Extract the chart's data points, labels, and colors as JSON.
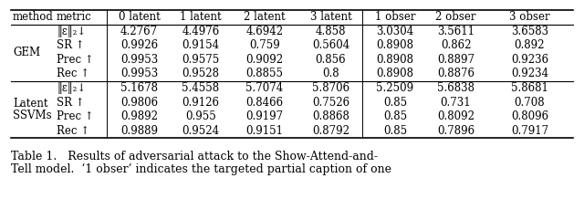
{
  "col_headers": [
    "method",
    "metric",
    "0 latent",
    "1 latent",
    "2 latent",
    "3 latent",
    "1 obser",
    "2 obser",
    "3 obser"
  ],
  "data_rows": [
    [
      "‖ε‖₂↓",
      "4.2767",
      "4.4976",
      "4.6942",
      "4.858",
      "3.0304",
      "3.5611",
      "3.6583"
    ],
    [
      "SR ↑",
      "0.9926",
      "0.9154",
      "0.759",
      "0.5604",
      "0.8908",
      "0.862",
      "0.892"
    ],
    [
      "Prec ↑",
      "0.9953",
      "0.9575",
      "0.9092",
      "0.856",
      "0.8908",
      "0.8897",
      "0.9236"
    ],
    [
      "Rec ↑",
      "0.9953",
      "0.9528",
      "0.8855",
      "0.8",
      "0.8908",
      "0.8876",
      "0.9234"
    ],
    [
      "‖ε‖₂↓",
      "5.1678",
      "5.4558",
      "5.7074",
      "5.8706",
      "5.2509",
      "5.6838",
      "5.8681"
    ],
    [
      "SR ↑",
      "0.9806",
      "0.9126",
      "0.8466",
      "0.7526",
      "0.85",
      "0.731",
      "0.708"
    ],
    [
      "Prec ↑",
      "0.9892",
      "0.955",
      "0.9197",
      "0.8868",
      "0.85",
      "0.8092",
      "0.8096"
    ],
    [
      "Rec ↑",
      "0.9889",
      "0.9524",
      "0.9151",
      "0.8792",
      "0.85",
      "0.7896",
      "0.7917"
    ]
  ],
  "gem_label": "GEM",
  "latent_line1": "Latent",
  "latent_line2": "SSVMs",
  "caption_line1": "Table 1.   Results of adversarial attack to the Show-Attend-and-",
  "caption_line2": "Tell model.  ‘1 obser’ indicates the targeted partial caption of one",
  "background_color": "#ffffff",
  "font_size": 8.5,
  "caption_font_size": 9.0
}
